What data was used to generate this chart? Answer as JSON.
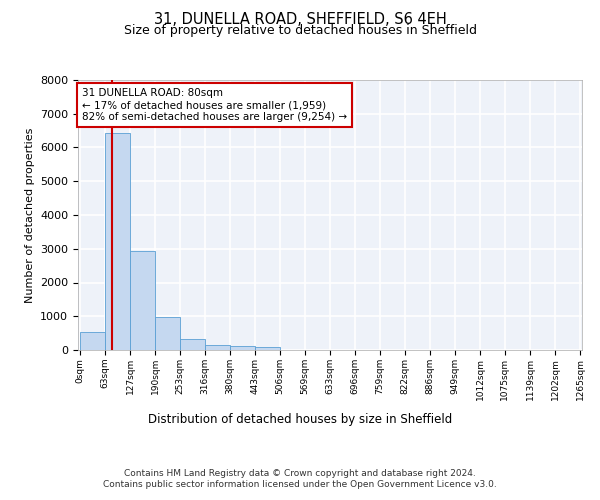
{
  "title_line1": "31, DUNELLA ROAD, SHEFFIELD, S6 4EH",
  "title_line2": "Size of property relative to detached houses in Sheffield",
  "xlabel": "Distribution of detached houses by size in Sheffield",
  "ylabel": "Number of detached properties",
  "annotation_title": "31 DUNELLA ROAD: 80sqm",
  "annotation_line2": "← 17% of detached houses are smaller (1,959)",
  "annotation_line3": "82% of semi-detached houses are larger (9,254) →",
  "property_size_sqm": 80,
  "bin_width": 63,
  "bin_edges": [
    0,
    63,
    127,
    190,
    253,
    316,
    380,
    443,
    506,
    569,
    633,
    696,
    759,
    822,
    886,
    949,
    1012,
    1075,
    1139,
    1202,
    1265
  ],
  "bar_heights": [
    530,
    6430,
    2920,
    980,
    340,
    160,
    110,
    80,
    0,
    0,
    0,
    0,
    0,
    0,
    0,
    0,
    0,
    0,
    0,
    0
  ],
  "bar_color": "#c5d8f0",
  "bar_edge_color": "#5a9fd4",
  "background_color": "#eef2f9",
  "grid_color": "#ffffff",
  "vline_color": "#cc0000",
  "vline_x": 80,
  "annotation_box_color": "#ffffff",
  "annotation_box_edge": "#cc0000",
  "ylim": [
    0,
    8000
  ],
  "yticks": [
    0,
    1000,
    2000,
    3000,
    4000,
    5000,
    6000,
    7000,
    8000
  ],
  "footer_line1": "Contains HM Land Registry data © Crown copyright and database right 2024.",
  "footer_line2": "Contains public sector information licensed under the Open Government Licence v3.0."
}
